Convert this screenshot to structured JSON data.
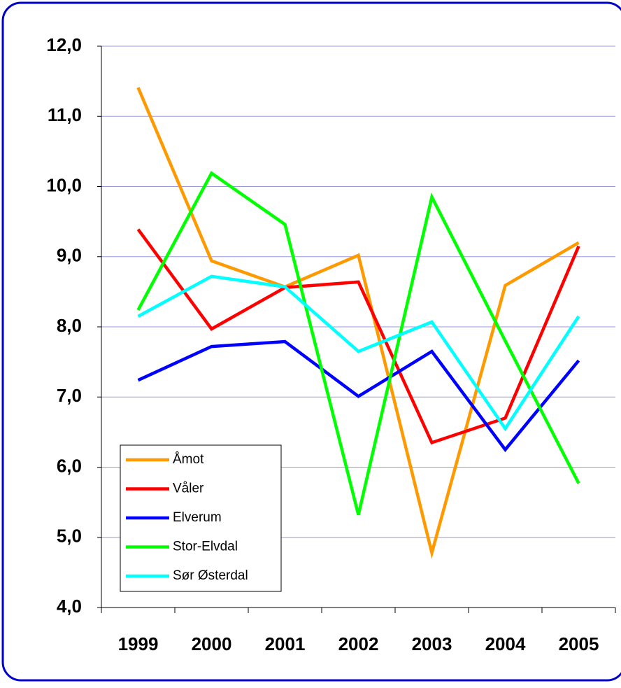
{
  "chart_data": {
    "type": "line",
    "categories": [
      "1999",
      "2000",
      "2001",
      "2002",
      "2003",
      "2004",
      "2005"
    ],
    "series": [
      {
        "name": "Åmot",
        "color": "#ff9900",
        "values": [
          11.41,
          8.94,
          8.57,
          9.02,
          4.78,
          8.59,
          9.2
        ]
      },
      {
        "name": "Våler",
        "color": "#ff0000",
        "values": [
          9.39,
          7.97,
          8.56,
          8.64,
          6.35,
          6.7,
          9.15
        ]
      },
      {
        "name": "Elverum",
        "color": "#0000ff",
        "values": [
          7.24,
          7.72,
          7.79,
          7.01,
          7.65,
          6.25,
          7.52
        ]
      },
      {
        "name": "Stor-Elvdal",
        "color": "#00ff00",
        "values": [
          8.24,
          10.19,
          9.46,
          5.32,
          9.85,
          7.8,
          5.77
        ]
      },
      {
        "name": "Sør Østerdal",
        "color": "#00ffff",
        "values": [
          8.15,
          8.72,
          8.57,
          7.65,
          8.07,
          6.55,
          8.15
        ]
      }
    ],
    "ylim": [
      4,
      12
    ],
    "yticks": [
      {
        "value": 4,
        "label": "4,0"
      },
      {
        "value": 5,
        "label": "5,0"
      },
      {
        "value": 6,
        "label": "6,0"
      },
      {
        "value": 7,
        "label": "7,0"
      },
      {
        "value": 8,
        "label": "8,0"
      },
      {
        "value": 9,
        "label": "9,0"
      },
      {
        "value": 10,
        "label": "10,0"
      },
      {
        "value": 11,
        "label": "11,0"
      },
      {
        "value": 12,
        "label": "12,0"
      }
    ],
    "grid": true,
    "legend": "lower left"
  }
}
